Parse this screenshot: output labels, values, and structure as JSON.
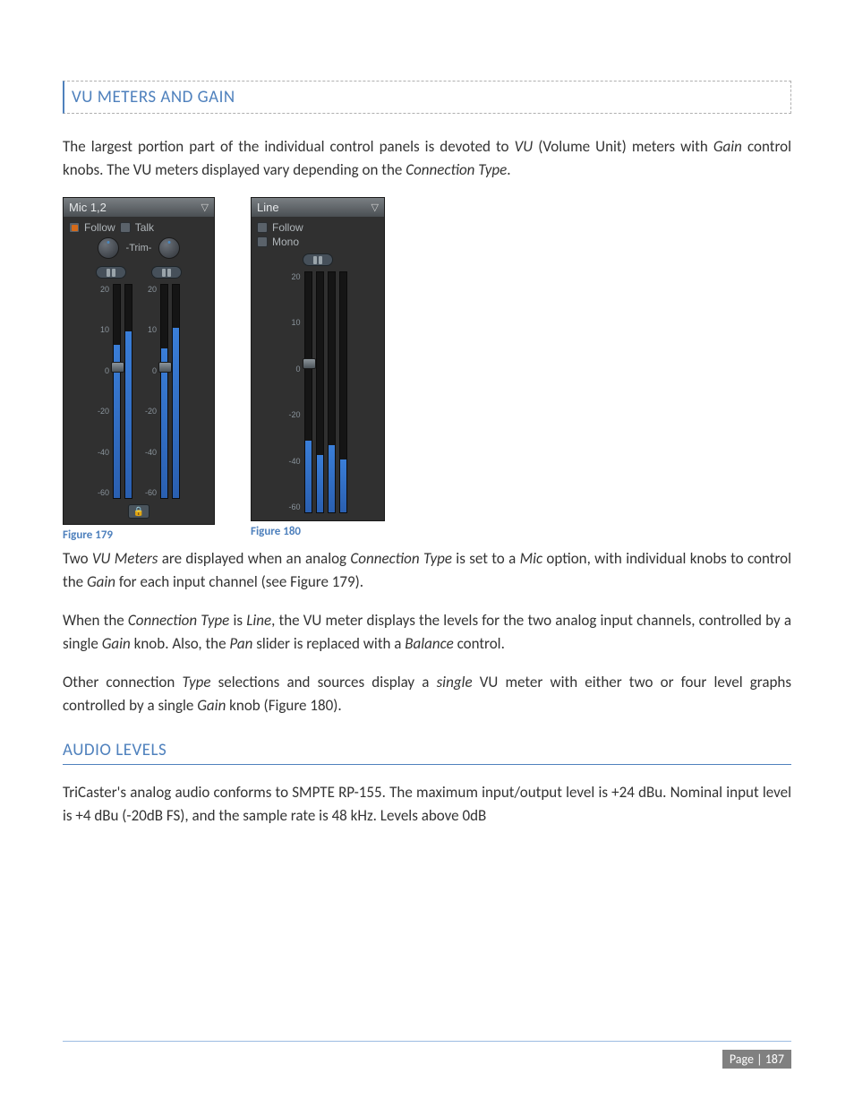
{
  "section": {
    "vu_heading": "VU METERS AND GAIN",
    "audio_heading": "AUDIO LEVELS"
  },
  "para": {
    "p1_a": "The largest portion part of the individual control panels is devoted to ",
    "p1_b": " (Volume Unit) meters with ",
    "p1_c": " control knobs.  The VU meters displayed vary depending on the ",
    "p1_d": ".",
    "p2_a": "Two ",
    "p2_b": " are displayed when an analog ",
    "p2_c": " is set to a ",
    "p2_d": " option, with individual knobs to control the ",
    "p2_e": " for each input channel (see Figure 179).",
    "p3_a": "When the ",
    "p3_b": " is ",
    "p3_c": ", the VU meter displays the levels for the two analog input channels, controlled by a single ",
    "p3_d": " knob.  Also, the ",
    "p3_e": " slider is replaced with a ",
    "p3_f": " control.",
    "p4_a": "Other connection ",
    "p4_b": " selections and sources display a ",
    "p4_c": " VU meter with either two or four level graphs controlled by a single ",
    "p4_d": " knob (Figure 180).",
    "p5": "TriCaster's analog audio conforms to SMPTE RP-155.  The maximum input/output level is +24 dBu. Nominal input level is +4 dBu (-20dB FS), and the sample rate is 48 kHz. Levels above 0dB"
  },
  "italic": {
    "vu": "VU",
    "gain": "Gain",
    "conn_type": "Connection Type",
    "vu_meters": "VU Meters",
    "mic": "Mic",
    "line": "Line",
    "pan": "Pan",
    "balance": "Balance",
    "type": "Type",
    "single": "single"
  },
  "fig": {
    "f179": "Figure 179",
    "f180": "Figure 180"
  },
  "panel_mic": {
    "title": "Mic 1,2",
    "follow": "Follow",
    "talk": "Talk",
    "trim": "-Trim-",
    "scale": {
      "s20": "20",
      "s10": "10",
      "s0": "0",
      "sm20": "-20",
      "sm40": "-40",
      "sm60": "-60"
    },
    "lock": "🔒",
    "bar1_height_pct": 72,
    "bar2_height_pct": 78,
    "bar3_height_pct": 70,
    "bar4_height_pct": 80,
    "handle_top_pct": 36,
    "colors": {
      "bar": "#3a7ed8"
    }
  },
  "panel_line": {
    "title": "Line",
    "follow": "Follow",
    "mono": "Mono",
    "scale": {
      "s20": "20",
      "s10": "10",
      "s0": "0",
      "sm20": "-20",
      "sm40": "-40",
      "sm60": "-60"
    },
    "bar1_height_pct": 30,
    "bar2_height_pct": 24,
    "bar3_height_pct": 28,
    "bar4_height_pct": 22,
    "handle_top_pct": 36,
    "colors": {
      "bar": "#3a7ed8"
    }
  },
  "page_number": "Page | 187"
}
